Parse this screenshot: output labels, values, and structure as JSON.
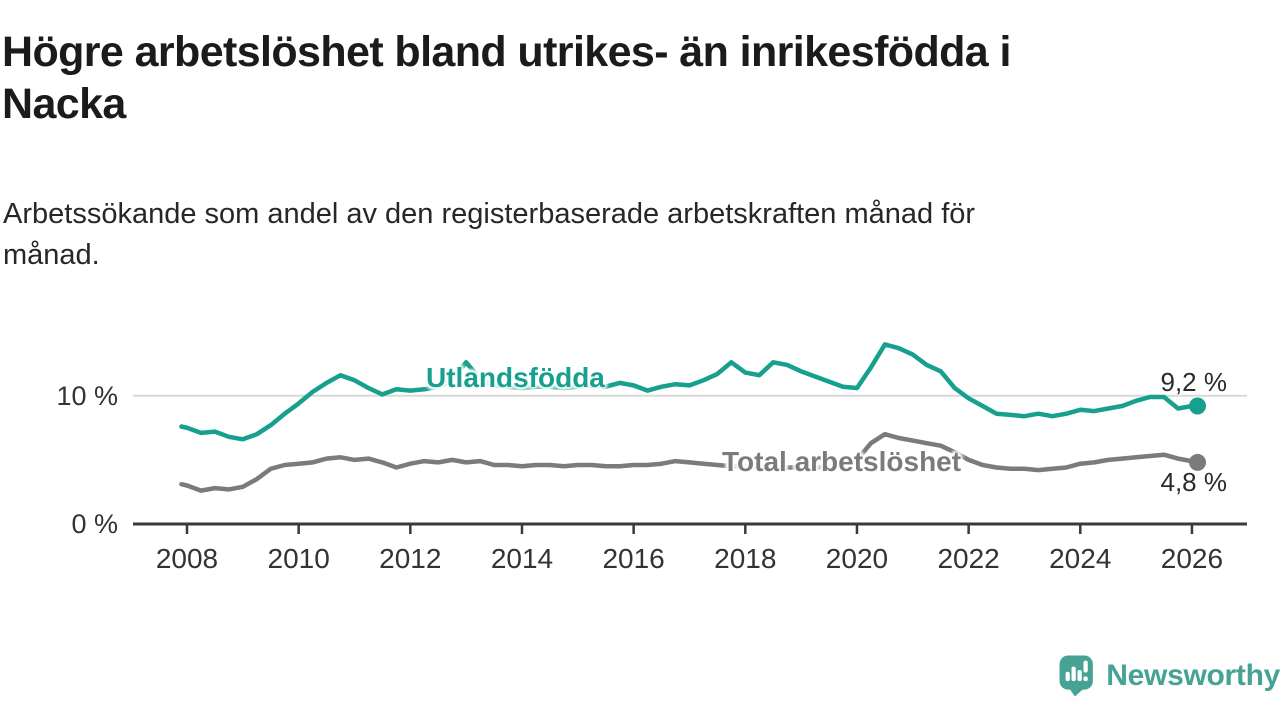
{
  "header": {
    "title": "Högre arbetslöshet bland utrikes- än inrikesfödda i Nacka",
    "title_lines": [
      "Högre arbetslöshet bland utrikes- än inrikesfödda i",
      "Nacka"
    ],
    "subtitle": "Arbetssökande som andel av den registerbaserade arbetskraften månad för månad.",
    "subtitle_lines": [
      "Arbetssökande som andel av den registerbaserade arbetskraften månad för",
      "månad."
    ]
  },
  "chart_data": {
    "type": "line",
    "title": "Högre arbetslöshet bland utrikes- än inrikesfödda i Nacka",
    "subtitle": "Arbetssökande som andel av den registerbaserade arbetskraften månad för månad.",
    "xlabel": "",
    "ylabel": "",
    "xlim": [
      2007.8,
      2026.35
    ],
    "ylim": [
      0,
      15.3
    ],
    "grid": "horizontal-10-only",
    "gridlines_y": [
      10
    ],
    "y_tick_labels": [
      "0 %",
      "10 %"
    ],
    "x_ticks": [
      2008,
      2010,
      2012,
      2014,
      2016,
      2018,
      2020,
      2022,
      2024,
      2026
    ],
    "x_tick_labels": [
      "2008",
      "2010",
      "2012",
      "2014",
      "2016",
      "2018",
      "2020",
      "2022",
      "2024",
      "2026"
    ],
    "legend_position": "inline-labels-on-lines",
    "x": [
      2007.9,
      2008.0,
      2008.25,
      2008.5,
      2008.75,
      2009.0,
      2009.25,
      2009.5,
      2009.75,
      2010.0,
      2010.25,
      2010.5,
      2010.75,
      2011.0,
      2011.25,
      2011.5,
      2011.75,
      2012.0,
      2012.25,
      2012.5,
      2012.75,
      2013.0,
      2013.25,
      2013.5,
      2013.75,
      2014.0,
      2014.25,
      2014.5,
      2014.75,
      2015.0,
      2015.25,
      2015.5,
      2015.75,
      2016.0,
      2016.25,
      2016.5,
      2016.75,
      2017.0,
      2017.25,
      2017.5,
      2017.75,
      2018.0,
      2018.25,
      2018.5,
      2018.75,
      2019.0,
      2019.25,
      2019.5,
      2019.75,
      2020.0,
      2020.25,
      2020.5,
      2020.75,
      2021.0,
      2021.25,
      2021.5,
      2021.75,
      2022.0,
      2022.25,
      2022.5,
      2022.75,
      2023.0,
      2023.25,
      2023.5,
      2023.75,
      2024.0,
      2024.25,
      2024.5,
      2024.75,
      2025.0,
      2025.25,
      2025.5,
      2025.75,
      2026.0,
      2026.1
    ],
    "series": [
      {
        "name": "Utlandsfödda",
        "color": "#17a08e",
        "end_label": "9,2 %",
        "end_value": 9.2,
        "values": [
          7.6,
          7.5,
          7.1,
          7.2,
          6.8,
          6.6,
          7.0,
          7.7,
          8.6,
          9.4,
          10.3,
          11.0,
          11.6,
          11.2,
          10.6,
          10.1,
          10.5,
          10.4,
          10.5,
          10.7,
          11.2,
          12.6,
          11.3,
          10.8,
          10.7,
          10.6,
          10.7,
          10.7,
          10.6,
          10.7,
          10.8,
          10.7,
          11.0,
          10.8,
          10.4,
          10.7,
          10.9,
          10.8,
          11.2,
          11.7,
          12.6,
          11.8,
          11.6,
          12.6,
          12.4,
          11.9,
          11.5,
          11.1,
          10.7,
          10.6,
          12.2,
          14.0,
          13.7,
          13.2,
          12.4,
          11.9,
          10.6,
          9.8,
          9.2,
          8.6,
          8.5,
          8.4,
          8.6,
          8.4,
          8.6,
          8.9,
          8.8,
          9.0,
          9.2,
          9.6,
          9.9,
          9.9,
          9.0,
          9.2,
          9.2
        ]
      },
      {
        "name": "Total arbetslöshet",
        "color": "#7b7b7e",
        "end_label": "4,8 %",
        "end_value": 4.8,
        "values": [
          3.1,
          3.0,
          2.6,
          2.8,
          2.7,
          2.9,
          3.5,
          4.3,
          4.6,
          4.7,
          4.8,
          5.1,
          5.2,
          5.0,
          5.1,
          4.8,
          4.4,
          4.7,
          4.9,
          4.8,
          5.0,
          4.8,
          4.9,
          4.6,
          4.6,
          4.5,
          4.6,
          4.6,
          4.5,
          4.6,
          4.6,
          4.5,
          4.5,
          4.6,
          4.6,
          4.7,
          4.9,
          4.8,
          4.7,
          4.6,
          4.5,
          4.5,
          4.4,
          4.4,
          4.4,
          4.4,
          4.4,
          4.5,
          4.6,
          5.0,
          6.3,
          7.0,
          6.7,
          6.5,
          6.3,
          6.1,
          5.6,
          5.0,
          4.6,
          4.4,
          4.3,
          4.3,
          4.2,
          4.3,
          4.4,
          4.7,
          4.8,
          5.0,
          5.1,
          5.2,
          5.3,
          5.4,
          5.1,
          4.9,
          4.8
        ]
      }
    ]
  },
  "footer": {
    "brand": "Newsworthy"
  },
  "colors": {
    "teal": "#17a08e",
    "gray": "#7b7b7e",
    "brand_teal": "#45a294",
    "grid": "#d9d9d9",
    "axis": "#3a3a3a",
    "text": "#222222"
  }
}
